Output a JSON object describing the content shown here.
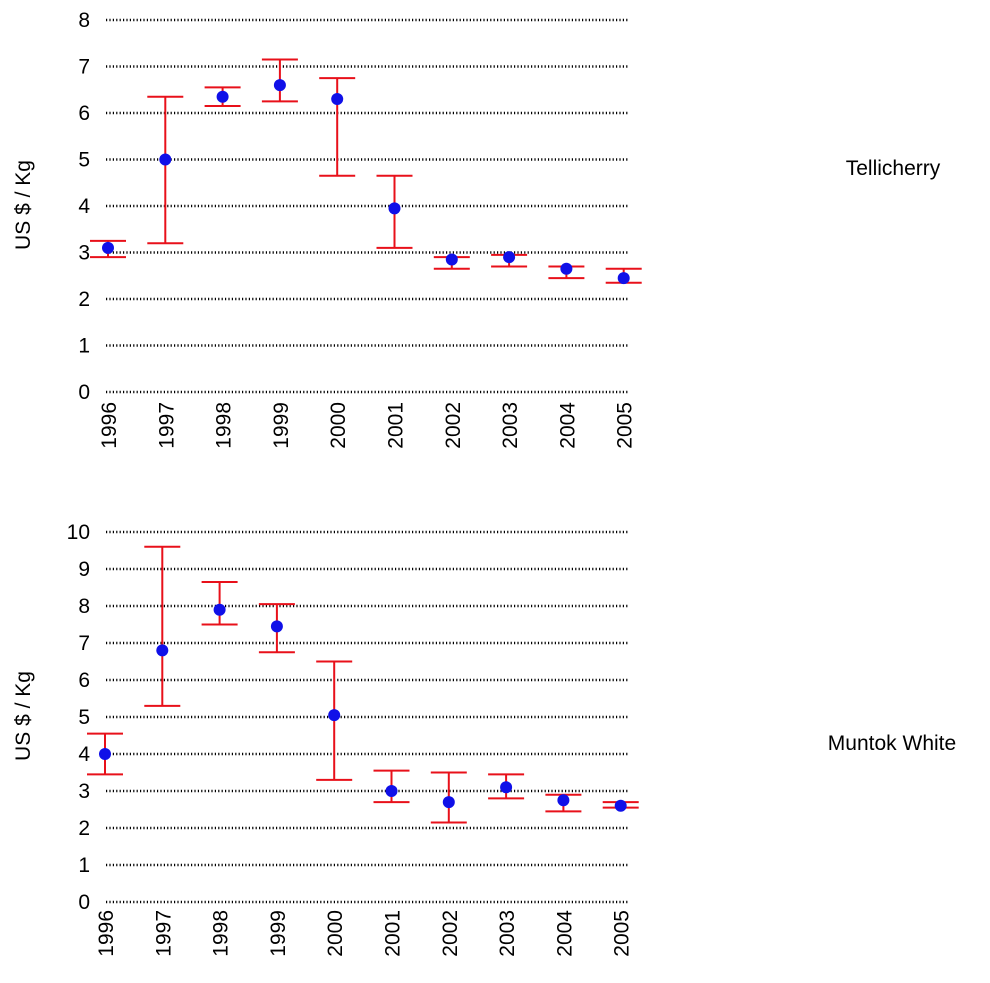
{
  "chart_data": [
    {
      "type": "scatter",
      "title": "Tellicherry",
      "ylabel": "US $ / Kg",
      "xlabel": "",
      "categories": [
        "1996",
        "1997",
        "1998",
        "1999",
        "2000",
        "2001",
        "2002",
        "2003",
        "2004",
        "2005"
      ],
      "ylim": [
        0,
        8
      ],
      "yticks": [
        0,
        1,
        2,
        3,
        4,
        5,
        6,
        7,
        8
      ],
      "grid": true,
      "series": [
        {
          "values": [
            3.1,
            5.0,
            6.35,
            6.6,
            6.3,
            3.95,
            2.85,
            2.9,
            2.65,
            2.45
          ],
          "error_low": [
            2.9,
            3.2,
            6.15,
            6.25,
            4.65,
            3.1,
            2.65,
            2.7,
            2.45,
            2.35
          ],
          "error_high": [
            3.25,
            6.35,
            6.55,
            7.15,
            6.75,
            4.65,
            2.9,
            2.95,
            2.7,
            2.65
          ],
          "marker_color": "#1010e8",
          "error_color": "#e8101a"
        }
      ]
    },
    {
      "type": "scatter",
      "title": "Muntok White",
      "ylabel": "US $ / Kg",
      "xlabel": "",
      "categories": [
        "1996",
        "1997",
        "1998",
        "1999",
        "2000",
        "2001",
        "2002",
        "2003",
        "2004",
        "2005"
      ],
      "ylim": [
        0,
        10
      ],
      "yticks": [
        0,
        1,
        2,
        3,
        4,
        5,
        6,
        7,
        8,
        9,
        10
      ],
      "grid": true,
      "series": [
        {
          "values": [
            4.0,
            6.8,
            7.9,
            7.45,
            5.05,
            3.0,
            2.7,
            3.1,
            2.75,
            2.6
          ],
          "error_low": [
            3.45,
            5.3,
            7.5,
            6.75,
            3.3,
            2.7,
            2.15,
            2.8,
            2.45,
            2.55
          ],
          "error_high": [
            4.55,
            9.6,
            8.65,
            8.05,
            6.5,
            3.55,
            3.5,
            3.45,
            2.9,
            2.7
          ],
          "marker_color": "#1010e8",
          "error_color": "#e8101a"
        }
      ]
    }
  ]
}
